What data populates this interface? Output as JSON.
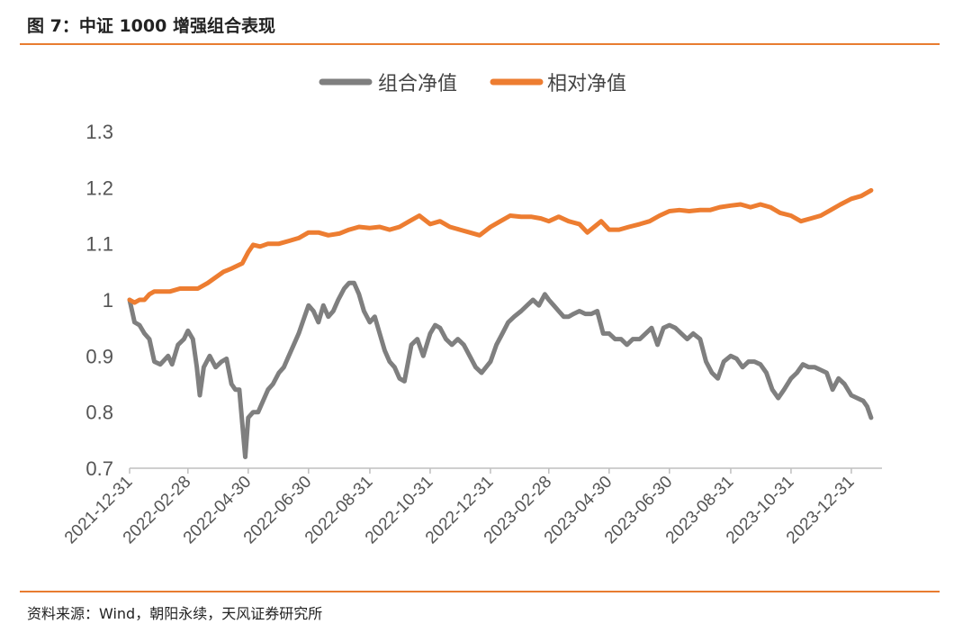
{
  "figure": {
    "title": "图 7：中证 1000 增强组合表现",
    "source": "资料来源：Wind，朝阳永续，天风证券研究所"
  },
  "colors": {
    "accent": "#E87C30",
    "portfolio": "#7F7F7F",
    "relative": "#ED7D31"
  },
  "chart_data": {
    "type": "line",
    "title": "",
    "xlabel": "",
    "ylabel": "",
    "ylim": [
      0.7,
      1.3
    ],
    "yticks": [
      "0.7",
      "0.8",
      "0.9",
      "1",
      "1.1",
      "1.2",
      "1.3"
    ],
    "xticks": [
      "2021-12-31",
      "2022-02-28",
      "2022-04-30",
      "2022-06-30",
      "2022-08-31",
      "2022-10-31",
      "2022-12-31",
      "2023-02-28",
      "2023-04-30",
      "2023-06-30",
      "2023-08-31",
      "2023-10-31",
      "2023-12-31"
    ],
    "xrange": [
      "2021-12-31",
      "2024-01-31"
    ],
    "legend": "top-center",
    "grid": false,
    "series": [
      {
        "name": "组合净值",
        "points": [
          [
            "2021-12-31",
            1.0
          ],
          [
            "2022-01-05",
            0.96
          ],
          [
            "2022-01-10",
            0.955
          ],
          [
            "2022-01-15",
            0.94
          ],
          [
            "2022-01-20",
            0.93
          ],
          [
            "2022-01-25",
            0.89
          ],
          [
            "2022-01-31",
            0.885
          ],
          [
            "2022-02-08",
            0.9
          ],
          [
            "2022-02-12",
            0.885
          ],
          [
            "2022-02-18",
            0.92
          ],
          [
            "2022-02-24",
            0.93
          ],
          [
            "2022-02-28",
            0.945
          ],
          [
            "2022-03-05",
            0.93
          ],
          [
            "2022-03-09",
            0.88
          ],
          [
            "2022-03-12",
            0.83
          ],
          [
            "2022-03-16",
            0.88
          ],
          [
            "2022-03-22",
            0.9
          ],
          [
            "2022-03-28",
            0.88
          ],
          [
            "2022-04-03",
            0.89
          ],
          [
            "2022-04-08",
            0.895
          ],
          [
            "2022-04-13",
            0.85
          ],
          [
            "2022-04-17",
            0.84
          ],
          [
            "2022-04-21",
            0.84
          ],
          [
            "2022-04-24",
            0.78
          ],
          [
            "2022-04-27",
            0.72
          ],
          [
            "2022-04-30",
            0.79
          ],
          [
            "2022-05-05",
            0.8
          ],
          [
            "2022-05-10",
            0.8
          ],
          [
            "2022-05-15",
            0.82
          ],
          [
            "2022-05-20",
            0.84
          ],
          [
            "2022-05-25",
            0.85
          ],
          [
            "2022-05-31",
            0.87
          ],
          [
            "2022-06-05",
            0.88
          ],
          [
            "2022-06-10",
            0.9
          ],
          [
            "2022-06-15",
            0.92
          ],
          [
            "2022-06-20",
            0.94
          ],
          [
            "2022-06-26",
            0.97
          ],
          [
            "2022-06-30",
            0.99
          ],
          [
            "2022-07-05",
            0.98
          ],
          [
            "2022-07-10",
            0.96
          ],
          [
            "2022-07-15",
            0.99
          ],
          [
            "2022-07-20",
            0.97
          ],
          [
            "2022-07-25",
            0.98
          ],
          [
            "2022-07-30",
            1.0
          ],
          [
            "2022-08-05",
            1.02
          ],
          [
            "2022-08-10",
            1.03
          ],
          [
            "2022-08-15",
            1.03
          ],
          [
            "2022-08-20",
            1.01
          ],
          [
            "2022-08-25",
            0.98
          ],
          [
            "2022-08-31",
            0.96
          ],
          [
            "2022-09-05",
            0.97
          ],
          [
            "2022-09-10",
            0.94
          ],
          [
            "2022-09-15",
            0.91
          ],
          [
            "2022-09-20",
            0.89
          ],
          [
            "2022-09-25",
            0.88
          ],
          [
            "2022-09-30",
            0.86
          ],
          [
            "2022-10-05",
            0.855
          ],
          [
            "2022-10-12",
            0.92
          ],
          [
            "2022-10-18",
            0.93
          ],
          [
            "2022-10-24",
            0.9
          ],
          [
            "2022-10-31",
            0.94
          ],
          [
            "2022-11-05",
            0.955
          ],
          [
            "2022-11-10",
            0.95
          ],
          [
            "2022-11-16",
            0.93
          ],
          [
            "2022-11-22",
            0.92
          ],
          [
            "2022-11-28",
            0.93
          ],
          [
            "2022-12-04",
            0.92
          ],
          [
            "2022-12-10",
            0.9
          ],
          [
            "2022-12-16",
            0.88
          ],
          [
            "2022-12-22",
            0.87
          ],
          [
            "2022-12-31",
            0.89
          ],
          [
            "2023-01-06",
            0.92
          ],
          [
            "2023-01-12",
            0.94
          ],
          [
            "2023-01-18",
            0.96
          ],
          [
            "2023-01-24",
            0.97
          ],
          [
            "2023-01-31",
            0.98
          ],
          [
            "2023-02-06",
            0.99
          ],
          [
            "2023-02-12",
            1.0
          ],
          [
            "2023-02-18",
            0.99
          ],
          [
            "2023-02-24",
            1.01
          ],
          [
            "2023-02-28",
            1.0
          ],
          [
            "2023-03-05",
            0.99
          ],
          [
            "2023-03-10",
            0.98
          ],
          [
            "2023-03-15",
            0.97
          ],
          [
            "2023-03-20",
            0.97
          ],
          [
            "2023-03-25",
            0.975
          ],
          [
            "2023-03-31",
            0.98
          ],
          [
            "2023-04-06",
            0.975
          ],
          [
            "2023-04-12",
            0.975
          ],
          [
            "2023-04-18",
            0.98
          ],
          [
            "2023-04-24",
            0.94
          ],
          [
            "2023-04-30",
            0.94
          ],
          [
            "2023-05-06",
            0.93
          ],
          [
            "2023-05-12",
            0.93
          ],
          [
            "2023-05-18",
            0.92
          ],
          [
            "2023-05-24",
            0.93
          ],
          [
            "2023-05-31",
            0.93
          ],
          [
            "2023-06-06",
            0.94
          ],
          [
            "2023-06-12",
            0.95
          ],
          [
            "2023-06-18",
            0.92
          ],
          [
            "2023-06-24",
            0.95
          ],
          [
            "2023-06-30",
            0.955
          ],
          [
            "2023-07-06",
            0.95
          ],
          [
            "2023-07-12",
            0.94
          ],
          [
            "2023-07-18",
            0.93
          ],
          [
            "2023-07-24",
            0.94
          ],
          [
            "2023-07-31",
            0.93
          ],
          [
            "2023-08-06",
            0.89
          ],
          [
            "2023-08-12",
            0.87
          ],
          [
            "2023-08-18",
            0.86
          ],
          [
            "2023-08-24",
            0.89
          ],
          [
            "2023-08-31",
            0.9
          ],
          [
            "2023-09-06",
            0.895
          ],
          [
            "2023-09-12",
            0.88
          ],
          [
            "2023-09-18",
            0.89
          ],
          [
            "2023-09-24",
            0.89
          ],
          [
            "2023-09-30",
            0.885
          ],
          [
            "2023-10-06",
            0.87
          ],
          [
            "2023-10-12",
            0.84
          ],
          [
            "2023-10-18",
            0.825
          ],
          [
            "2023-10-24",
            0.84
          ],
          [
            "2023-10-31",
            0.86
          ],
          [
            "2023-11-06",
            0.87
          ],
          [
            "2023-11-12",
            0.885
          ],
          [
            "2023-11-18",
            0.88
          ],
          [
            "2023-11-24",
            0.88
          ],
          [
            "2023-11-30",
            0.875
          ],
          [
            "2023-12-06",
            0.87
          ],
          [
            "2023-12-12",
            0.84
          ],
          [
            "2023-12-18",
            0.86
          ],
          [
            "2023-12-24",
            0.85
          ],
          [
            "2023-12-31",
            0.83
          ],
          [
            "2024-01-06",
            0.825
          ],
          [
            "2024-01-12",
            0.82
          ],
          [
            "2024-01-16",
            0.81
          ],
          [
            "2024-01-20",
            0.79
          ]
        ]
      },
      {
        "name": "相对净值",
        "points": [
          [
            "2021-12-31",
            1.0
          ],
          [
            "2022-01-05",
            0.995
          ],
          [
            "2022-01-10",
            1.0
          ],
          [
            "2022-01-15",
            1.0
          ],
          [
            "2022-01-20",
            1.01
          ],
          [
            "2022-01-25",
            1.015
          ],
          [
            "2022-01-31",
            1.015
          ],
          [
            "2022-02-10",
            1.015
          ],
          [
            "2022-02-20",
            1.02
          ],
          [
            "2022-02-28",
            1.02
          ],
          [
            "2022-03-10",
            1.02
          ],
          [
            "2022-03-20",
            1.03
          ],
          [
            "2022-03-28",
            1.04
          ],
          [
            "2022-04-05",
            1.05
          ],
          [
            "2022-04-12",
            1.055
          ],
          [
            "2022-04-18",
            1.06
          ],
          [
            "2022-04-24",
            1.065
          ],
          [
            "2022-04-30",
            1.085
          ],
          [
            "2022-05-05",
            1.098
          ],
          [
            "2022-05-12",
            1.095
          ],
          [
            "2022-05-20",
            1.1
          ],
          [
            "2022-05-31",
            1.1
          ],
          [
            "2022-06-10",
            1.105
          ],
          [
            "2022-06-20",
            1.11
          ],
          [
            "2022-06-30",
            1.12
          ],
          [
            "2022-07-10",
            1.12
          ],
          [
            "2022-07-20",
            1.115
          ],
          [
            "2022-07-31",
            1.118
          ],
          [
            "2022-08-10",
            1.125
          ],
          [
            "2022-08-20",
            1.13
          ],
          [
            "2022-08-31",
            1.128
          ],
          [
            "2022-09-10",
            1.13
          ],
          [
            "2022-09-20",
            1.125
          ],
          [
            "2022-09-30",
            1.13
          ],
          [
            "2022-10-10",
            1.14
          ],
          [
            "2022-10-20",
            1.15
          ],
          [
            "2022-10-31",
            1.135
          ],
          [
            "2022-11-10",
            1.14
          ],
          [
            "2022-11-20",
            1.13
          ],
          [
            "2022-11-30",
            1.125
          ],
          [
            "2022-12-10",
            1.12
          ],
          [
            "2022-12-20",
            1.115
          ],
          [
            "2022-12-31",
            1.13
          ],
          [
            "2023-01-10",
            1.14
          ],
          [
            "2023-01-20",
            1.15
          ],
          [
            "2023-01-31",
            1.148
          ],
          [
            "2023-02-10",
            1.148
          ],
          [
            "2023-02-20",
            1.145
          ],
          [
            "2023-02-28",
            1.14
          ],
          [
            "2023-03-10",
            1.148
          ],
          [
            "2023-03-20",
            1.14
          ],
          [
            "2023-03-31",
            1.135
          ],
          [
            "2023-04-08",
            1.12
          ],
          [
            "2023-04-15",
            1.13
          ],
          [
            "2023-04-22",
            1.14
          ],
          [
            "2023-04-30",
            1.125
          ],
          [
            "2023-05-10",
            1.125
          ],
          [
            "2023-05-20",
            1.13
          ],
          [
            "2023-05-31",
            1.135
          ],
          [
            "2023-06-10",
            1.14
          ],
          [
            "2023-06-20",
            1.15
          ],
          [
            "2023-06-30",
            1.158
          ],
          [
            "2023-07-10",
            1.16
          ],
          [
            "2023-07-20",
            1.158
          ],
          [
            "2023-07-31",
            1.16
          ],
          [
            "2023-08-10",
            1.16
          ],
          [
            "2023-08-20",
            1.165
          ],
          [
            "2023-08-31",
            1.168
          ],
          [
            "2023-09-10",
            1.17
          ],
          [
            "2023-09-20",
            1.165
          ],
          [
            "2023-09-30",
            1.17
          ],
          [
            "2023-10-10",
            1.165
          ],
          [
            "2023-10-20",
            1.155
          ],
          [
            "2023-10-31",
            1.15
          ],
          [
            "2023-11-10",
            1.14
          ],
          [
            "2023-11-20",
            1.145
          ],
          [
            "2023-11-30",
            1.15
          ],
          [
            "2023-12-10",
            1.16
          ],
          [
            "2023-12-20",
            1.17
          ],
          [
            "2023-12-31",
            1.18
          ],
          [
            "2024-01-10",
            1.185
          ],
          [
            "2024-01-20",
            1.195
          ]
        ]
      }
    ]
  }
}
